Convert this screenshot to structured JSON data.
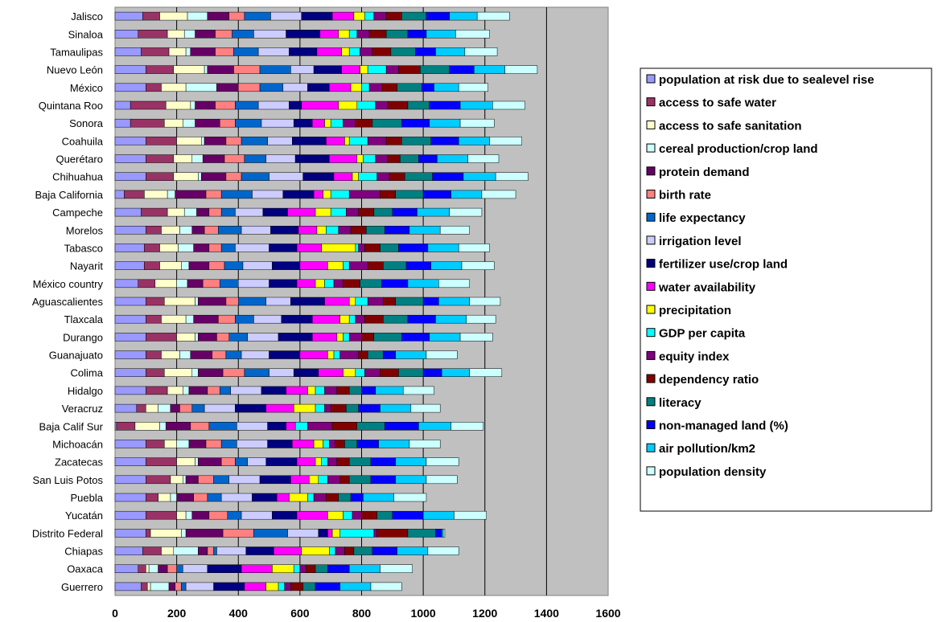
{
  "chart_data": {
    "type": "bar",
    "orientation": "horizontal",
    "stacked": true,
    "grid": true,
    "legend_position": "right",
    "xlim": [
      0,
      1600
    ],
    "x_ticks": [
      "0",
      "200",
      "400",
      "600",
      "800",
      "1000",
      "1200",
      "1400",
      "1600"
    ],
    "plot_background": "#C0C0C0",
    "categories": [
      "Jalisco",
      "Sinaloa",
      "Tamaulipas",
      "Nuevo León",
      "México",
      "Quintana Roo",
      "Sonora",
      "Coahuila",
      "Querétaro",
      "Chihuahua",
      "Baja California",
      "Campeche",
      "Morelos",
      "Tabasco",
      "Nayarit",
      "México country",
      "Aguascalientes",
      "Tlaxcala",
      "Durango",
      "Guanajuato",
      "Colima",
      "Hidalgo",
      "Veracruz",
      "Baja Calif Sur",
      "Michoacán",
      "Zacatecas",
      "San Luis Potos",
      "Puebla",
      "Yucatán",
      "Distrito Federal",
      "Chiapas",
      "Oaxaca",
      "Guerrero"
    ],
    "series": [
      {
        "name": "population at risk due to sealevel rise",
        "color": "#9999FF",
        "values": [
          90,
          75,
          85,
          100,
          100,
          50,
          50,
          100,
          100,
          100,
          30,
          85,
          100,
          95,
          95,
          75,
          100,
          100,
          100,
          100,
          100,
          100,
          70,
          5,
          100,
          100,
          100,
          100,
          100,
          100,
          90,
          75,
          85
        ]
      },
      {
        "name": "access to safe water",
        "color": "#993366",
        "values": [
          55,
          95,
          90,
          90,
          50,
          115,
          110,
          100,
          90,
          90,
          65,
          85,
          50,
          50,
          50,
          55,
          60,
          50,
          100,
          50,
          60,
          70,
          30,
          60,
          60,
          100,
          80,
          40,
          100,
          15,
          60,
          25,
          20
        ]
      },
      {
        "name": "access to safe sanitation",
        "color": "#FFFFCC",
        "values": [
          90,
          55,
          55,
          100,
          80,
          80,
          60,
          80,
          60,
          80,
          75,
          55,
          60,
          60,
          70,
          70,
          100,
          80,
          60,
          60,
          90,
          50,
          40,
          80,
          40,
          60,
          40,
          40,
          30,
          100,
          40,
          10,
          10
        ]
      },
      {
        "name": "cereal production/crop land",
        "color": "#CCFFFF",
        "values": [
          65,
          35,
          15,
          10,
          100,
          15,
          40,
          10,
          35,
          10,
          25,
          40,
          40,
          50,
          25,
          35,
          10,
          25,
          10,
          35,
          20,
          20,
          40,
          20,
          40,
          10,
          10,
          20,
          20,
          15,
          80,
          30,
          60
        ]
      },
      {
        "name": "protein demand",
        "color": "#660066",
        "values": [
          70,
          65,
          80,
          85,
          70,
          65,
          80,
          70,
          70,
          80,
          100,
          40,
          40,
          50,
          65,
          50,
          90,
          80,
          60,
          70,
          80,
          60,
          30,
          80,
          55,
          75,
          40,
          55,
          55,
          120,
          30,
          30,
          20
        ]
      },
      {
        "name": "birth rate",
        "color": "#FF8080",
        "values": [
          50,
          55,
          60,
          85,
          70,
          65,
          50,
          50,
          65,
          50,
          50,
          40,
          45,
          40,
          50,
          55,
          40,
          55,
          40,
          45,
          70,
          40,
          40,
          60,
          50,
          45,
          50,
          45,
          60,
          100,
          20,
          30,
          20
        ]
      },
      {
        "name": "life expectancy",
        "color": "#0066CC",
        "values": [
          85,
          70,
          80,
          100,
          75,
          75,
          85,
          85,
          70,
          90,
          100,
          45,
          75,
          45,
          60,
          60,
          90,
          60,
          60,
          50,
          80,
          35,
          40,
          90,
          50,
          40,
          50,
          45,
          45,
          110,
          10,
          20,
          15
        ]
      },
      {
        "name": "irrigation level",
        "color": "#CCCCFF",
        "values": [
          100,
          105,
          100,
          75,
          80,
          100,
          105,
          80,
          95,
          110,
          100,
          90,
          95,
          110,
          95,
          100,
          80,
          90,
          100,
          90,
          80,
          100,
          100,
          100,
          100,
          60,
          100,
          100,
          100,
          100,
          95,
          80,
          90
        ]
      },
      {
        "name": "fertilizer use/crop land",
        "color": "#000080",
        "values": [
          100,
          110,
          90,
          90,
          70,
          40,
          60,
          110,
          110,
          100,
          100,
          80,
          90,
          90,
          90,
          90,
          110,
          100,
          110,
          100,
          80,
          80,
          100,
          60,
          80,
          100,
          100,
          80,
          80,
          30,
          90,
          110,
          100
        ]
      },
      {
        "name": "water availability",
        "color": "#FF00FF",
        "values": [
          70,
          60,
          80,
          60,
          70,
          120,
          40,
          60,
          90,
          60,
          30,
          90,
          60,
          80,
          90,
          60,
          80,
          90,
          80,
          90,
          80,
          70,
          90,
          30,
          70,
          60,
          60,
          40,
          100,
          15,
          90,
          100,
          70
        ]
      },
      {
        "name": "precipitation",
        "color": "#FFFF00",
        "values": [
          35,
          35,
          25,
          25,
          35,
          60,
          20,
          15,
          20,
          20,
          25,
          50,
          30,
          110,
          50,
          30,
          20,
          30,
          20,
          20,
          40,
          25,
          70,
          0,
          30,
          20,
          30,
          60,
          50,
          25,
          90,
          70,
          40
        ]
      },
      {
        "name": "GDP per capita",
        "color": "#00FFFF",
        "values": [
          30,
          25,
          35,
          60,
          25,
          60,
          40,
          60,
          40,
          60,
          60,
          50,
          40,
          10,
          20,
          30,
          40,
          20,
          20,
          20,
          30,
          30,
          30,
          40,
          20,
          20,
          30,
          20,
          30,
          110,
          20,
          20,
          20
        ]
      },
      {
        "name": "equity index",
        "color": "#800080",
        "values": [
          40,
          40,
          40,
          40,
          40,
          40,
          40,
          60,
          40,
          40,
          100,
          40,
          40,
          20,
          60,
          30,
          50,
          30,
          40,
          60,
          50,
          40,
          20,
          80,
          20,
          30,
          40,
          40,
          30,
          10,
          30,
          20,
          20
        ]
      },
      {
        "name": "dependency ratio",
        "color": "#800000",
        "values": [
          50,
          55,
          60,
          70,
          50,
          65,
          55,
          50,
          40,
          50,
          50,
          50,
          50,
          50,
          50,
          55,
          40,
          60,
          40,
          30,
          60,
          40,
          50,
          80,
          30,
          40,
          30,
          40,
          50,
          100,
          30,
          30,
          40
        ]
      },
      {
        "name": "literacy",
        "color": "#008080",
        "values": [
          80,
          70,
          80,
          95,
          80,
          70,
          95,
          95,
          60,
          90,
          90,
          60,
          60,
          60,
          75,
          70,
          90,
          80,
          90,
          50,
          80,
          40,
          40,
          90,
          40,
          70,
          70,
          40,
          50,
          90,
          60,
          40,
          40
        ]
      },
      {
        "name": "non-managed land (%)",
        "color": "#0000FF",
        "values": [
          75,
          60,
          65,
          80,
          40,
          100,
          90,
          90,
          60,
          100,
          90,
          80,
          80,
          95,
          80,
          85,
          50,
          90,
          90,
          40,
          60,
          45,
          70,
          110,
          70,
          80,
          80,
          40,
          100,
          20,
          80,
          70,
          80
        ]
      },
      {
        "name": "air pollution/km2",
        "color": "#00CCFF",
        "values": [
          90,
          95,
          95,
          100,
          80,
          105,
          100,
          100,
          100,
          105,
          100,
          105,
          100,
          100,
          100,
          100,
          100,
          100,
          100,
          100,
          90,
          90,
          100,
          105,
          100,
          100,
          100,
          100,
          100,
          5,
          100,
          100,
          100
        ]
      },
      {
        "name": "population density",
        "color": "#CCFFFF",
        "values": [
          105,
          110,
          105,
          105,
          95,
          105,
          110,
          105,
          100,
          105,
          110,
          105,
          95,
          100,
          105,
          100,
          100,
          95,
          105,
          100,
          105,
          100,
          95,
          105,
          100,
          105,
          100,
          105,
          105,
          5,
          100,
          105,
          100
        ]
      }
    ]
  }
}
